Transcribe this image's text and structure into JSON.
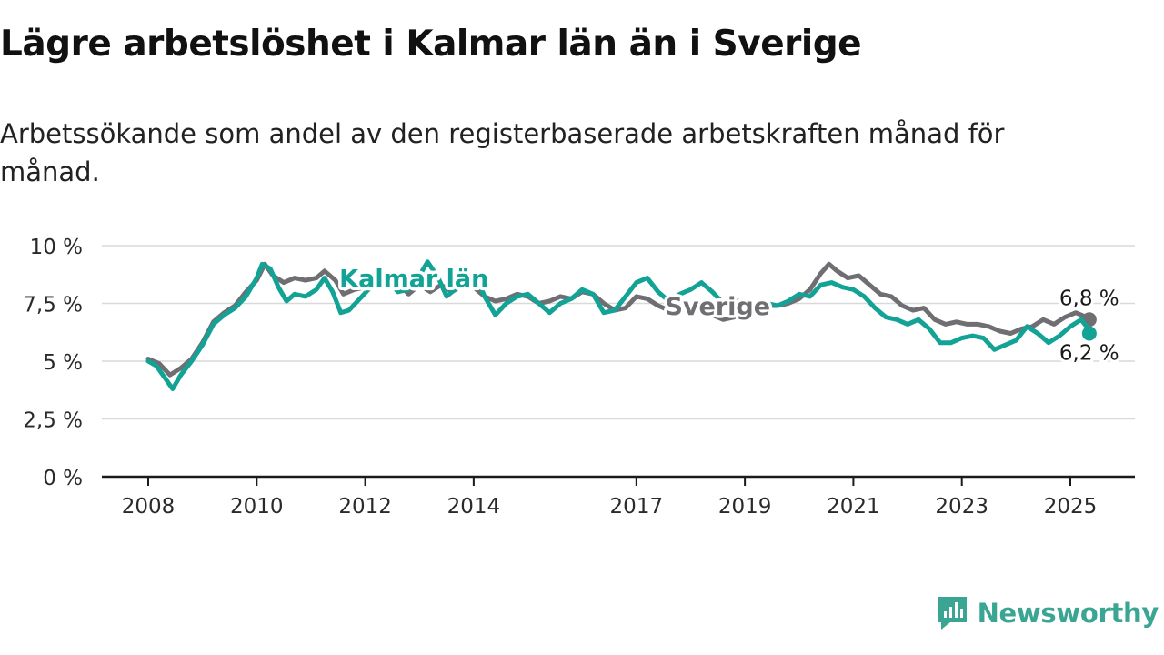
{
  "title": "Lägre arbetslöshet i Kalmar län än i Sverige",
  "subtitle": "Arbetssökande som andel av den registerbaserade arbetskraften månad för månad.",
  "brand": {
    "name": "Newsworthy",
    "icon": "newsworthy-logo-icon",
    "color": "#3aa592"
  },
  "chart_data": {
    "type": "line",
    "title": "",
    "xlabel": "",
    "ylabel": "",
    "xlim": [
      2007.6,
      2026.2
    ],
    "ylim": [
      0,
      10
    ],
    "yticks": [
      0,
      2.5,
      5,
      7.5,
      10
    ],
    "ytick_labels": [
      "0 %",
      "2,5 %",
      "5 %",
      "7,5 %",
      "10 %"
    ],
    "xticks": [
      2008,
      2010,
      2012,
      2014,
      2017,
      2019,
      2021,
      2023,
      2025
    ],
    "xtick_labels": [
      "2008",
      "2010",
      "2012",
      "2014",
      "2017",
      "2019",
      "2021",
      "2023",
      "2025"
    ],
    "grid": "horizontal",
    "series": [
      {
        "name": "Sverige",
        "color": "#6f6f73",
        "label_at": [
          2018.5,
          7.0
        ],
        "end_label": "6,8 %",
        "points": [
          [
            2008.0,
            5.1
          ],
          [
            2008.2,
            4.9
          ],
          [
            2008.4,
            4.4
          ],
          [
            2008.6,
            4.7
          ],
          [
            2008.8,
            5.1
          ],
          [
            2009.0,
            5.8
          ],
          [
            2009.2,
            6.7
          ],
          [
            2009.4,
            7.1
          ],
          [
            2009.6,
            7.4
          ],
          [
            2009.8,
            8.0
          ],
          [
            2010.0,
            8.5
          ],
          [
            2010.15,
            9.2
          ],
          [
            2010.3,
            8.7
          ],
          [
            2010.5,
            8.4
          ],
          [
            2010.7,
            8.6
          ],
          [
            2010.9,
            8.5
          ],
          [
            2011.1,
            8.6
          ],
          [
            2011.25,
            8.9
          ],
          [
            2011.45,
            8.5
          ],
          [
            2011.6,
            7.9
          ],
          [
            2011.8,
            8.1
          ],
          [
            2012.0,
            8.2
          ],
          [
            2012.2,
            8.3
          ],
          [
            2012.4,
            8.8
          ],
          [
            2012.6,
            8.4
          ],
          [
            2012.8,
            7.9
          ],
          [
            2013.0,
            8.3
          ],
          [
            2013.2,
            8.0
          ],
          [
            2013.4,
            8.3
          ],
          [
            2013.6,
            8.0
          ],
          [
            2013.8,
            8.3
          ],
          [
            2014.0,
            8.2
          ],
          [
            2014.2,
            7.8
          ],
          [
            2014.4,
            7.6
          ],
          [
            2014.6,
            7.7
          ],
          [
            2014.8,
            7.9
          ],
          [
            2015.0,
            7.8
          ],
          [
            2015.2,
            7.5
          ],
          [
            2015.4,
            7.6
          ],
          [
            2015.6,
            7.8
          ],
          [
            2015.8,
            7.7
          ],
          [
            2016.0,
            8.0
          ],
          [
            2016.2,
            7.9
          ],
          [
            2016.4,
            7.5
          ],
          [
            2016.6,
            7.2
          ],
          [
            2016.8,
            7.3
          ],
          [
            2017.0,
            7.8
          ],
          [
            2017.2,
            7.7
          ],
          [
            2017.4,
            7.4
          ],
          [
            2017.6,
            7.2
          ],
          [
            2017.8,
            7.3
          ],
          [
            2018.0,
            7.4
          ],
          [
            2018.2,
            7.2
          ],
          [
            2018.4,
            7.0
          ],
          [
            2018.6,
            6.8
          ],
          [
            2018.8,
            6.9
          ],
          [
            2019.0,
            7.1
          ],
          [
            2019.2,
            7.3
          ],
          [
            2019.4,
            7.4
          ],
          [
            2019.6,
            7.4
          ],
          [
            2019.8,
            7.5
          ],
          [
            2020.0,
            7.7
          ],
          [
            2020.2,
            8.1
          ],
          [
            2020.4,
            8.8
          ],
          [
            2020.55,
            9.2
          ],
          [
            2020.7,
            8.9
          ],
          [
            2020.9,
            8.6
          ],
          [
            2021.1,
            8.7
          ],
          [
            2021.3,
            8.3
          ],
          [
            2021.5,
            7.9
          ],
          [
            2021.7,
            7.8
          ],
          [
            2021.9,
            7.4
          ],
          [
            2022.1,
            7.2
          ],
          [
            2022.3,
            7.3
          ],
          [
            2022.5,
            6.8
          ],
          [
            2022.7,
            6.6
          ],
          [
            2022.9,
            6.7
          ],
          [
            2023.1,
            6.6
          ],
          [
            2023.3,
            6.6
          ],
          [
            2023.5,
            6.5
          ],
          [
            2023.7,
            6.3
          ],
          [
            2023.9,
            6.2
          ],
          [
            2024.1,
            6.4
          ],
          [
            2024.3,
            6.5
          ],
          [
            2024.5,
            6.8
          ],
          [
            2024.7,
            6.6
          ],
          [
            2024.9,
            6.9
          ],
          [
            2025.1,
            7.1
          ],
          [
            2025.3,
            6.9
          ],
          [
            2025.35,
            6.8
          ]
        ]
      },
      {
        "name": "Kalmar län",
        "color": "#13a396",
        "label_at": [
          2012.9,
          8.2
        ],
        "end_label": "6,2 %",
        "points": [
          [
            2008.0,
            5.0
          ],
          [
            2008.15,
            4.8
          ],
          [
            2008.3,
            4.3
          ],
          [
            2008.45,
            3.8
          ],
          [
            2008.6,
            4.4
          ],
          [
            2008.8,
            5.0
          ],
          [
            2009.0,
            5.7
          ],
          [
            2009.2,
            6.6
          ],
          [
            2009.4,
            7.0
          ],
          [
            2009.6,
            7.3
          ],
          [
            2009.8,
            7.8
          ],
          [
            2010.0,
            8.6
          ],
          [
            2010.1,
            9.2
          ],
          [
            2010.25,
            9.0
          ],
          [
            2010.4,
            8.2
          ],
          [
            2010.55,
            7.6
          ],
          [
            2010.7,
            7.9
          ],
          [
            2010.9,
            7.8
          ],
          [
            2011.1,
            8.1
          ],
          [
            2011.25,
            8.6
          ],
          [
            2011.4,
            8.0
          ],
          [
            2011.55,
            7.1
          ],
          [
            2011.7,
            7.2
          ],
          [
            2011.9,
            7.7
          ],
          [
            2012.1,
            8.2
          ],
          [
            2012.3,
            8.8
          ],
          [
            2012.45,
            8.5
          ],
          [
            2012.6,
            8.0
          ],
          [
            2012.8,
            8.1
          ],
          [
            2013.0,
            8.7
          ],
          [
            2013.15,
            9.3
          ],
          [
            2013.35,
            8.6
          ],
          [
            2013.5,
            7.8
          ],
          [
            2013.7,
            8.2
          ],
          [
            2013.9,
            8.5
          ],
          [
            2014.1,
            8.4
          ],
          [
            2014.2,
            7.8
          ],
          [
            2014.4,
            7.0
          ],
          [
            2014.6,
            7.5
          ],
          [
            2014.8,
            7.8
          ],
          [
            2015.0,
            7.9
          ],
          [
            2015.2,
            7.5
          ],
          [
            2015.4,
            7.1
          ],
          [
            2015.6,
            7.5
          ],
          [
            2015.8,
            7.7
          ],
          [
            2016.0,
            8.1
          ],
          [
            2016.2,
            7.9
          ],
          [
            2016.4,
            7.1
          ],
          [
            2016.6,
            7.2
          ],
          [
            2016.8,
            7.8
          ],
          [
            2017.0,
            8.4
          ],
          [
            2017.2,
            8.6
          ],
          [
            2017.4,
            8.0
          ],
          [
            2017.6,
            7.6
          ],
          [
            2017.8,
            7.9
          ],
          [
            2018.0,
            8.1
          ],
          [
            2018.2,
            8.4
          ],
          [
            2018.4,
            8.0
          ],
          [
            2018.6,
            7.5
          ],
          [
            2018.8,
            7.6
          ],
          [
            2019.0,
            7.6
          ],
          [
            2019.2,
            7.4
          ],
          [
            2019.4,
            7.5
          ],
          [
            2019.6,
            7.4
          ],
          [
            2019.8,
            7.6
          ],
          [
            2020.0,
            7.9
          ],
          [
            2020.2,
            7.8
          ],
          [
            2020.4,
            8.3
          ],
          [
            2020.6,
            8.4
          ],
          [
            2020.8,
            8.2
          ],
          [
            2021.0,
            8.1
          ],
          [
            2021.2,
            7.8
          ],
          [
            2021.4,
            7.3
          ],
          [
            2021.6,
            6.9
          ],
          [
            2021.8,
            6.8
          ],
          [
            2022.0,
            6.6
          ],
          [
            2022.2,
            6.8
          ],
          [
            2022.4,
            6.4
          ],
          [
            2022.6,
            5.8
          ],
          [
            2022.8,
            5.8
          ],
          [
            2023.0,
            6.0
          ],
          [
            2023.2,
            6.1
          ],
          [
            2023.4,
            6.0
          ],
          [
            2023.6,
            5.5
          ],
          [
            2023.8,
            5.7
          ],
          [
            2024.0,
            5.9
          ],
          [
            2024.2,
            6.5
          ],
          [
            2024.4,
            6.2
          ],
          [
            2024.6,
            5.8
          ],
          [
            2024.8,
            6.1
          ],
          [
            2025.0,
            6.5
          ],
          [
            2025.2,
            6.8
          ],
          [
            2025.3,
            6.5
          ],
          [
            2025.35,
            6.2
          ]
        ]
      }
    ]
  }
}
